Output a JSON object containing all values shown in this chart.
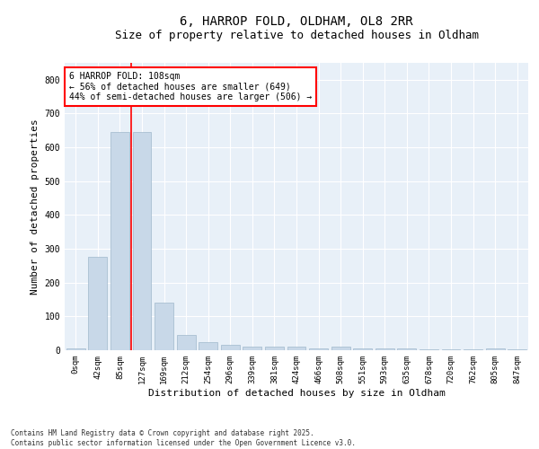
{
  "title": "6, HARROP FOLD, OLDHAM, OL8 2RR",
  "subtitle": "Size of property relative to detached houses in Oldham",
  "xlabel": "Distribution of detached houses by size in Oldham",
  "ylabel": "Number of detached properties",
  "categories": [
    "0sqm",
    "42sqm",
    "85sqm",
    "127sqm",
    "169sqm",
    "212sqm",
    "254sqm",
    "296sqm",
    "339sqm",
    "381sqm",
    "424sqm",
    "466sqm",
    "508sqm",
    "551sqm",
    "593sqm",
    "635sqm",
    "678sqm",
    "720sqm",
    "762sqm",
    "805sqm",
    "847sqm"
  ],
  "values": [
    5,
    275,
    645,
    645,
    140,
    45,
    25,
    15,
    10,
    10,
    10,
    5,
    10,
    5,
    5,
    5,
    2,
    2,
    2,
    5,
    2
  ],
  "bar_color": "#c8d8e8",
  "bar_edge_color": "#a0b8cc",
  "vline_x": 2.5,
  "vline_color": "red",
  "annotation_text": "6 HARROP FOLD: 108sqm\n← 56% of detached houses are smaller (649)\n44% of semi-detached houses are larger (506) →",
  "annotation_box_color": "white",
  "annotation_box_edge_color": "red",
  "annotation_fontsize": 7,
  "ylim": [
    0,
    850
  ],
  "yticks": [
    0,
    100,
    200,
    300,
    400,
    500,
    600,
    700,
    800
  ],
  "footnote": "Contains HM Land Registry data © Crown copyright and database right 2025.\nContains public sector information licensed under the Open Government Licence v3.0.",
  "bg_color": "#e8f0f8",
  "title_fontsize": 10,
  "subtitle_fontsize": 9,
  "tick_fontsize": 6.5,
  "ylabel_fontsize": 8,
  "xlabel_fontsize": 8,
  "footnote_fontsize": 5.5
}
